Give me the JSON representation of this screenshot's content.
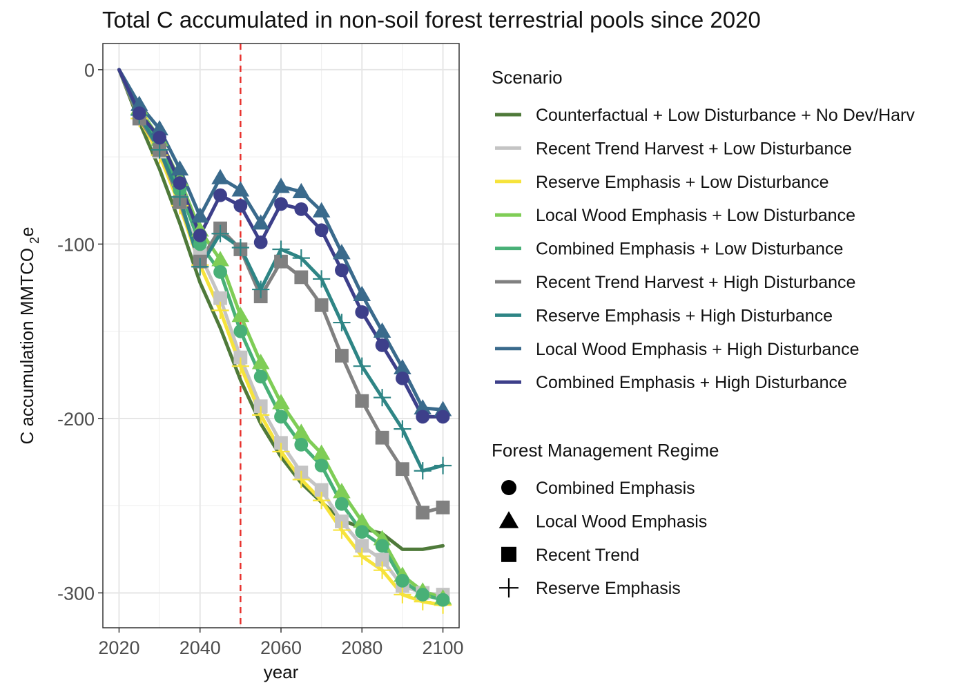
{
  "chart_data": {
    "type": "line",
    "title": "Total C accumulated in non-soil forest terrestrial pools since 2020",
    "xlabel": "year",
    "ylabel": "C accumulation MMTCO",
    "ylabel_sub": "2",
    "ylabel_suffix": "e",
    "xlim": [
      2016,
      2104
    ],
    "ylim": [
      -320,
      15
    ],
    "xticks": [
      2020,
      2040,
      2060,
      2080,
      2100
    ],
    "yticks": [
      0,
      -100,
      -200,
      -300
    ],
    "grid": true,
    "reference_line": {
      "x": 2050,
      "color": "#e8312c",
      "style": "dashed"
    },
    "x": [
      2020,
      2025,
      2030,
      2035,
      2040,
      2045,
      2050,
      2055,
      2060,
      2065,
      2070,
      2075,
      2080,
      2085,
      2090,
      2095,
      2100
    ],
    "legend_scenario_title": "Scenario",
    "legend_regime_title": "Forest Management Regime",
    "regimes": [
      {
        "name": "Combined Emphasis",
        "shape": "circle"
      },
      {
        "name": "Local Wood Emphasis",
        "shape": "triangle"
      },
      {
        "name": "Recent Trend",
        "shape": "square"
      },
      {
        "name": "Reserve Emphasis",
        "shape": "plus"
      }
    ],
    "series": [
      {
        "name": "Counterfactual + Low Disturbance + No Dev/Harv",
        "color": "#4f7a3a",
        "marker": "none",
        "values": [
          0,
          -30,
          -57,
          -88,
          -122,
          -148,
          -178,
          -203,
          -222,
          -237,
          -248,
          -258,
          -263,
          -266,
          -275,
          -275,
          -273
        ]
      },
      {
        "name": "Recent Trend Harvest + Low Disturbance",
        "color": "#c4c4c4",
        "marker": "square",
        "values": [
          0,
          -28,
          -47,
          -76,
          -106,
          -131,
          -165,
          -193,
          -214,
          -231,
          -241,
          -259,
          -273,
          -281,
          -296,
          -300,
          -301
        ]
      },
      {
        "name": "Reserve Emphasis + Low Disturbance",
        "color": "#f6e33b",
        "marker": "plus",
        "values": [
          0,
          -28,
          -49,
          -78,
          -112,
          -138,
          -170,
          -198,
          -219,
          -235,
          -247,
          -264,
          -279,
          -287,
          -301,
          -305,
          -307
        ]
      },
      {
        "name": "Local Wood Emphasis + Low Disturbance",
        "color": "#7fcd56",
        "marker": "triangle",
        "values": [
          0,
          -22,
          -40,
          -63,
          -92,
          -109,
          -141,
          -168,
          -191,
          -208,
          -220,
          -242,
          -259,
          -269,
          -290,
          -299,
          -303
        ]
      },
      {
        "name": "Combined Emphasis + Low Disturbance",
        "color": "#48b077",
        "marker": "circle",
        "values": [
          0,
          -25,
          -44,
          -69,
          -100,
          -116,
          -150,
          -176,
          -199,
          -215,
          -227,
          -249,
          -265,
          -273,
          -293,
          -301,
          -304
        ]
      },
      {
        "name": "Recent Trend Harvest + High Disturbance",
        "color": "#808080",
        "marker": "square",
        "values": [
          0,
          -28,
          -46,
          -76,
          -110,
          -91,
          -103,
          -130,
          -110,
          -119,
          -135,
          -164,
          -190,
          -211,
          -229,
          -254,
          -251
        ]
      },
      {
        "name": "Reserve Emphasis + High Disturbance",
        "color": "#2e8585",
        "marker": "plus",
        "values": [
          0,
          -26,
          -46,
          -73,
          -113,
          -94,
          -102,
          -126,
          -103,
          -108,
          -120,
          -145,
          -170,
          -188,
          -206,
          -230,
          -227
        ]
      },
      {
        "name": "Local Wood Emphasis + High Disturbance",
        "color": "#3a6a8c",
        "marker": "triangle",
        "values": [
          0,
          -20,
          -34,
          -57,
          -84,
          -62,
          -69,
          -88,
          -67,
          -70,
          -81,
          -105,
          -129,
          -150,
          -171,
          -194,
          -195
        ]
      },
      {
        "name": "Combined Emphasis + High Disturbance",
        "color": "#3d3f8a",
        "marker": "circle",
        "values": [
          0,
          -25,
          -39,
          -65,
          -95,
          -72,
          -78,
          -99,
          -77,
          -80,
          -92,
          -115,
          -139,
          -158,
          -177,
          -199,
          -199
        ]
      }
    ]
  }
}
